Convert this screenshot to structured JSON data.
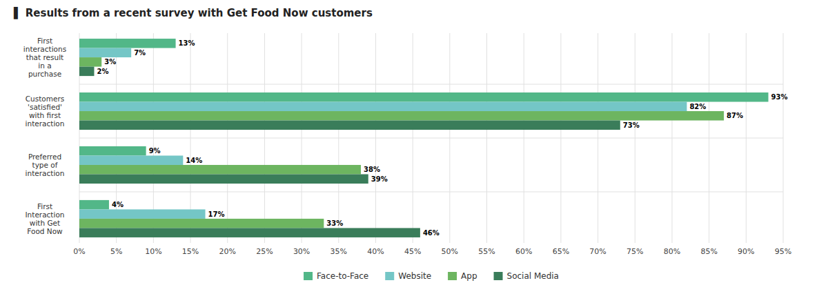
{
  "chart_data": {
    "type": "bar",
    "orientation": "horizontal",
    "title": "▌ Results from a recent survey with Get Food Now customers",
    "categories": [
      "First\ninteractions\nthat result\nin a\npurchase",
      "Customers\n'satisfied'\nwith first\ninteraction",
      "Preferred\ntype of\ninteraction",
      "First\nInteraction\nwith Get\nFood Now"
    ],
    "series": [
      {
        "name": "Face-to-Face",
        "color": "#52b788",
        "values": [
          13,
          93,
          9,
          4
        ],
        "value_labels": [
          "13%",
          "93%",
          "9%",
          "4%"
        ]
      },
      {
        "name": "Website",
        "color": "#74c6c6",
        "values": [
          7,
          82,
          14,
          17
        ],
        "value_labels": [
          "7%",
          "82%",
          "14%",
          "17%"
        ]
      },
      {
        "name": "App",
        "color": "#6db560",
        "values": [
          3,
          87,
          38,
          33
        ],
        "value_labels": [
          "3%",
          "87%",
          "38%",
          "33%"
        ]
      },
      {
        "name": "Social Media",
        "color": "#3a7d5a",
        "values": [
          2,
          73,
          39,
          46
        ],
        "value_labels": [
          "2%",
          "73%",
          "39%",
          "46%"
        ]
      }
    ],
    "xlim": [
      0,
      95
    ],
    "xticks": [
      {
        "value": 0,
        "label": "0%"
      },
      {
        "value": 5,
        "label": "5%"
      },
      {
        "value": 10,
        "label": "10%"
      },
      {
        "value": 15,
        "label": "15%"
      },
      {
        "value": 20,
        "label": "20%"
      },
      {
        "value": 25,
        "label": "25%"
      },
      {
        "value": 30,
        "label": "30%"
      },
      {
        "value": 35,
        "label": "35%"
      },
      {
        "value": 40,
        "label": "40%"
      },
      {
        "value": 45,
        "label": "45%"
      },
      {
        "value": 50,
        "label": "50%"
      },
      {
        "value": 55,
        "label": "55%"
      },
      {
        "value": 60,
        "label": "60%"
      },
      {
        "value": 65,
        "label": "65%"
      },
      {
        "value": 70,
        "label": "70%"
      },
      {
        "value": 75,
        "label": "75%"
      },
      {
        "value": 80,
        "label": "80%"
      },
      {
        "value": 85,
        "label": "85%"
      },
      {
        "value": 90,
        "label": "90%"
      },
      {
        "value": 95,
        "label": "95%"
      }
    ],
    "grid": true,
    "data_labels": true,
    "legend": "bottom"
  }
}
